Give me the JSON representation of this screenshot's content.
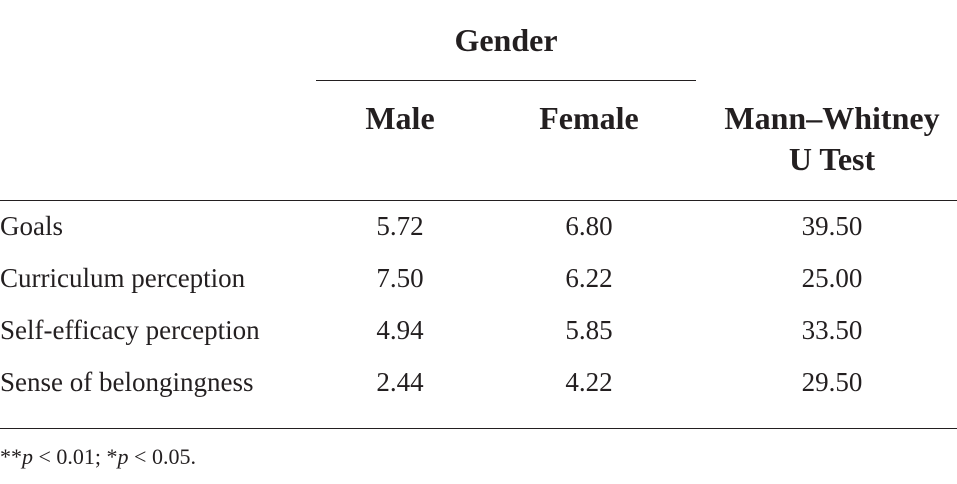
{
  "table": {
    "group_header": "Gender",
    "columns": {
      "male": "Male",
      "female": "Female",
      "mann_whitney_line1": "Mann–Whitney",
      "mann_whitney_line2": "U Test"
    },
    "rows": [
      {
        "label": "Goals",
        "male": "5.72",
        "female": "6.80",
        "u": "39.50"
      },
      {
        "label": "Curriculum perception",
        "male": "7.50",
        "female": "6.22",
        "u": "25.00"
      },
      {
        "label": "Self-efficacy perception",
        "male": "4.94",
        "female": "5.85",
        "u": "33.50"
      },
      {
        "label": "Sense of belongingness",
        "male": "2.44",
        "female": "4.22",
        "u": "29.50"
      }
    ],
    "footnote": {
      "stars2": "**",
      "p1": "p",
      "text1": " < 0.01; *",
      "p2": "p",
      "text2": " < 0.05."
    }
  }
}
